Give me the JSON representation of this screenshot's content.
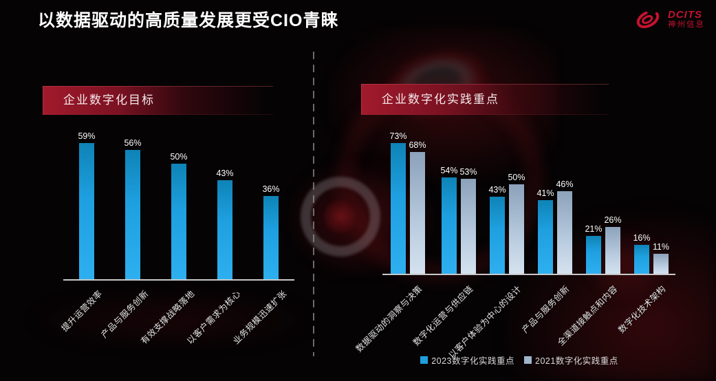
{
  "title": "以数据驱动的高质量发展更受CIO青睐",
  "logo": {
    "brand": "DCITS",
    "company": "神州信息"
  },
  "colors": {
    "accent_red": "#C41230",
    "banner_red": "#9A1728",
    "bar_blue_2023": "#1E9FDF",
    "bar_silver_2021": "#9FB5CC",
    "axis_line": "#C9C9C9",
    "divider": "#8F8F8F",
    "background": "#050304"
  },
  "chart_data": [
    {
      "type": "bar",
      "title": "企业数字化目标",
      "categories": [
        "提升运营效率",
        "产品与服务创新",
        "有效支撑战略落地",
        "以客户需求为核心",
        "业务规模迅速扩张"
      ],
      "values": [
        59,
        56,
        50,
        43,
        36
      ],
      "value_suffix": "%",
      "ylim": [
        0,
        65
      ],
      "grid": false,
      "legend_position": "none",
      "bar_color": "#1E9FDF"
    },
    {
      "type": "bar",
      "title": "企业数字化实践重点",
      "categories": [
        "数据驱动的洞察与决策",
        "数字化运营与供应链",
        "以客户体验为中心的设计",
        "产品与服务创新",
        "全渠道接触点和内容",
        "数字化技术架构"
      ],
      "series": [
        {
          "name": "2023数字化实践重点",
          "color": "#1E9FDF",
          "values": [
            73,
            54,
            43,
            41,
            21,
            16
          ]
        },
        {
          "name": "2021数字化实践重点",
          "color": "#9FB5CC",
          "values": [
            68,
            53,
            50,
            46,
            26,
            11
          ]
        }
      ],
      "value_suffix": "%",
      "ylim": [
        0,
        80
      ],
      "grid": false,
      "legend_position": "bottom"
    }
  ]
}
